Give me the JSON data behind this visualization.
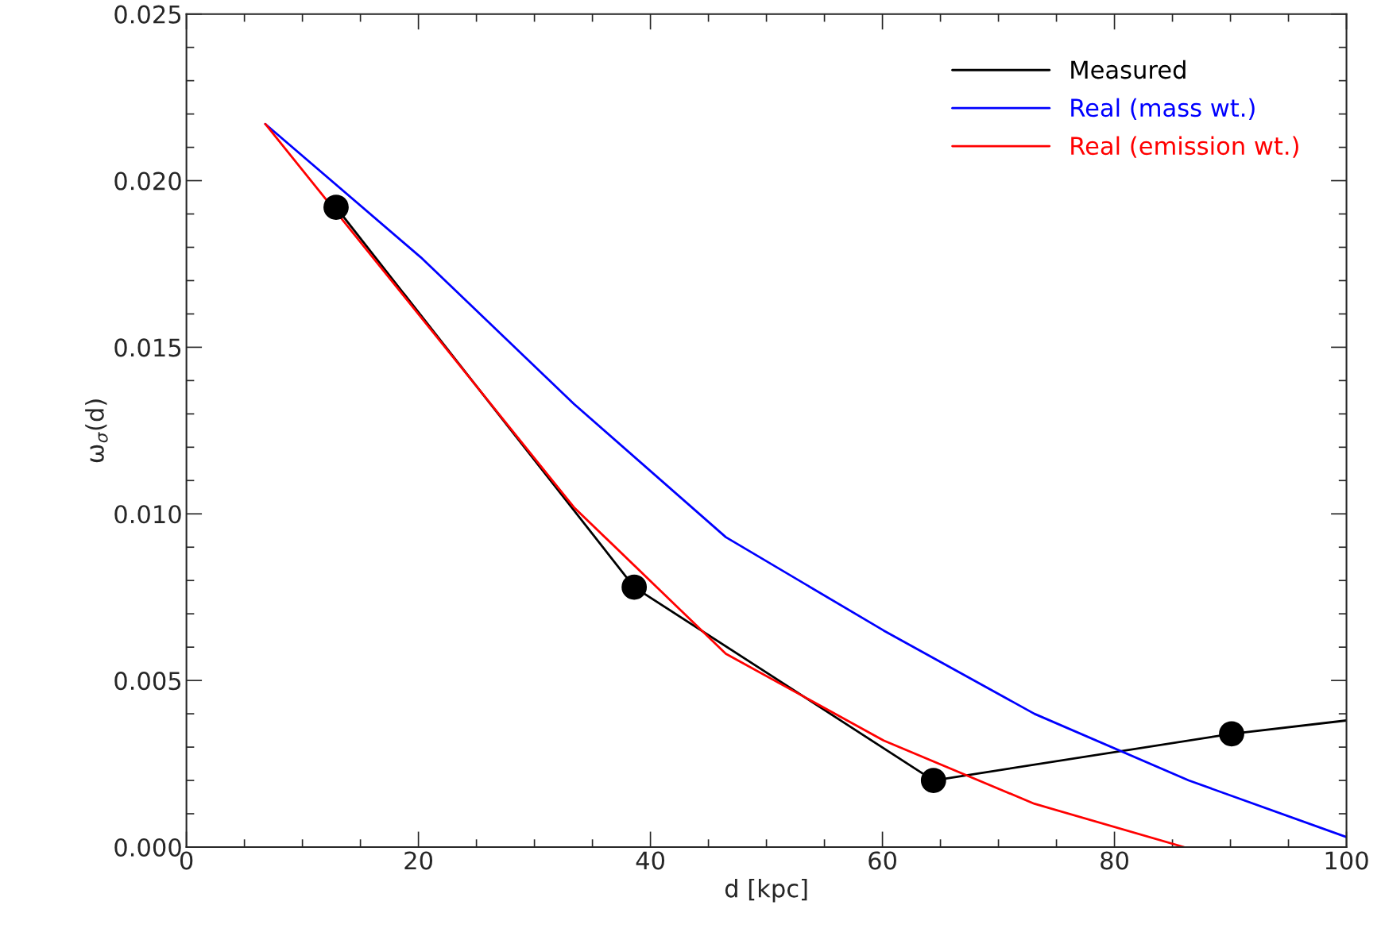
{
  "chart_data": {
    "type": "line",
    "xlabel": "d [kpc]",
    "ylabel": "ω$_{σ}$(d)",
    "xlim": [
      0,
      100
    ],
    "xticks": [
      0,
      20,
      40,
      60,
      80,
      100
    ],
    "ylim": [
      0,
      0.025
    ],
    "yticks": [
      {
        "value": 0,
        "label": "0.000"
      },
      {
        "value": 0.005,
        "label": "0.005"
      },
      {
        "value": 0.01,
        "label": "0.010"
      },
      {
        "value": 0.015,
        "label": "0.015"
      },
      {
        "value": 0.02,
        "label": "0.020"
      },
      {
        "value": 0.025,
        "label": "0.025"
      }
    ],
    "grid": false,
    "legend": "top right",
    "series": [
      {
        "name": "Measured",
        "color": "#000000",
        "x": [
          12.9,
          38.6,
          64.4,
          90.1,
          100
        ],
        "values": [
          0.0192,
          0.0078,
          0.002,
          0.0034,
          0.0038
        ]
      },
      {
        "name": "Real (mass wt.)",
        "color": "#0000ff",
        "x": [
          6.8,
          20.2,
          33.4,
          46.5,
          60.1,
          73.1,
          86.4,
          100
        ],
        "values": [
          0.0217,
          0.0177,
          0.0133,
          0.0093,
          0.0065,
          0.004,
          0.002,
          0.0003
        ]
      },
      {
        "name": "Real (emission wt.)",
        "color": "#ff0000",
        "x": [
          6.8,
          33.4,
          46.5,
          60.1,
          73.1,
          86.0
        ],
        "values": [
          0.0217,
          0.0102,
          0.0058,
          0.0032,
          0.0013,
          0.0
        ]
      },
      {
        "type": "scatter",
        "color": "#000000",
        "marker": "circle",
        "x": [
          12.9,
          38.6,
          64.4,
          90.1
        ],
        "values": [
          0.0192,
          0.0078,
          0.002,
          0.0034
        ]
      }
    ]
  }
}
